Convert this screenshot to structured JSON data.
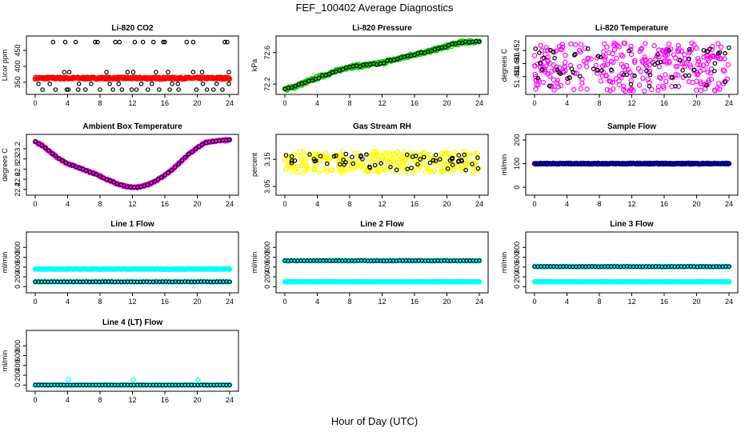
{
  "page": {
    "title": "FEF_100402  Average Diagnostics",
    "xlabel": "Hour of Day (UTC)"
  },
  "colors": {
    "black": "#000000",
    "red": "#ff0000",
    "green": "#00cc00",
    "magenta": "#ff00ff",
    "yellow": "#ffff00",
    "blue": "#0000ff",
    "cyan": "#00ffff"
  },
  "chart_data": [
    {
      "id": "co2",
      "type": "scatter",
      "title": "Li-820 CO2",
      "ylabel": "Licor ppm",
      "xlim": [
        0,
        24
      ],
      "ylim": [
        322,
        485
      ],
      "xticks": [
        0,
        4,
        8,
        12,
        16,
        20,
        24
      ],
      "yticks": [
        350,
        400,
        450
      ],
      "series": [
        {
          "name": "points",
          "color": "#ff0000",
          "mode": "band",
          "x0": 0,
          "x1": 24,
          "y": 363,
          "spread": 3
        },
        {
          "name": "averages",
          "color": "#000000",
          "mode": "list",
          "x": [
            2.2,
            3.7,
            5.0,
            7.4,
            7.7,
            9.9,
            10.4,
            12.3,
            13.3,
            14.6,
            15.8,
            16.0,
            18.7,
            19.5,
            23.4,
            23.7,
            0.9,
            2.5,
            3.9,
            4.1,
            5.3,
            6.2,
            8.0,
            9.6,
            10.7,
            11.9,
            12.5,
            13.9,
            15.3,
            16.6,
            17.7,
            19.9,
            21.2,
            22.0,
            23.1,
            3.6,
            4.2,
            8.8,
            11.4,
            12.1,
            14.9,
            16.4,
            19.5,
            20.6,
            23.9,
            0.4,
            1.8,
            5.4,
            6.9,
            9.2,
            10.3,
            13.1,
            14.4,
            16.9,
            17.6,
            20.7,
            22.4,
            23.9
          ],
          "y": [
            476,
            476,
            476,
            476,
            476,
            476,
            476,
            476,
            476,
            476,
            476,
            476,
            476,
            476,
            476,
            476,
            327,
            327,
            327,
            327,
            327,
            327,
            327,
            327,
            327,
            327,
            327,
            327,
            327,
            327,
            327,
            327,
            327,
            327,
            327,
            382,
            382,
            382,
            382,
            382,
            382,
            382,
            382,
            382,
            382,
            345,
            345,
            345,
            345,
            345,
            345,
            345,
            345,
            345,
            345,
            345,
            345,
            345
          ]
        }
      ]
    },
    {
      "id": "pressure",
      "type": "scatter",
      "title": "Li-820 Pressure",
      "ylabel": "kPa",
      "xlim": [
        0,
        24
      ],
      "ylim": [
        72.11,
        72.77
      ],
      "xticks": [
        0,
        4,
        8,
        12,
        16,
        20,
        24
      ],
      "yticks": [
        72.2,
        72.6
      ],
      "series": [
        {
          "name": "points",
          "color": "#00cc00",
          "mode": "curve",
          "cx": [
            0,
            1,
            2,
            3,
            4,
            5,
            6,
            7,
            8,
            9,
            10,
            11,
            12,
            13,
            14,
            15,
            16,
            17,
            18,
            19,
            20,
            21,
            22,
            23,
            24
          ],
          "cy": [
            72.13,
            72.16,
            72.2,
            72.24,
            72.28,
            72.32,
            72.35,
            72.39,
            72.42,
            72.43,
            72.44,
            72.45,
            72.47,
            72.5,
            72.52,
            72.55,
            72.58,
            72.6,
            72.62,
            72.65,
            72.68,
            72.71,
            72.73,
            72.74,
            72.74
          ],
          "spread": 0.02
        },
        {
          "name": "averages",
          "color": "#000000",
          "mode": "curve-sparse",
          "cx": [
            0,
            1,
            2,
            3,
            4,
            5,
            6,
            7,
            8,
            9,
            10,
            11,
            12,
            13,
            14,
            15,
            16,
            17,
            18,
            19,
            20,
            21,
            22,
            23,
            24
          ],
          "cy": [
            72.13,
            72.16,
            72.2,
            72.24,
            72.28,
            72.32,
            72.35,
            72.39,
            72.42,
            72.43,
            72.44,
            72.45,
            72.47,
            72.5,
            72.52,
            72.55,
            72.58,
            72.6,
            72.62,
            72.65,
            72.68,
            72.71,
            72.73,
            72.74,
            72.74
          ],
          "spread": 0.01
        }
      ]
    },
    {
      "id": "li820temp",
      "type": "scatter",
      "title": "Li-820 Temperature",
      "ylabel": "degrees C",
      "xlim": [
        0,
        24
      ],
      "ylim": [
        51.4395,
        51.4555
      ],
      "xticks": [
        0,
        4,
        8,
        12,
        16,
        20,
        24
      ],
      "yticks": [
        51.444,
        51.448,
        51.452
      ],
      "series": [
        {
          "name": "points",
          "color": "#ff00ff",
          "mode": "noise",
          "x0": 0,
          "x1": 24,
          "y": 51.447,
          "spread": 0.0075
        },
        {
          "name": "averages",
          "color": "#000000",
          "mode": "noise-sparse",
          "x0": 0,
          "x1": 24,
          "y": 51.447,
          "spread": 0.006
        }
      ]
    },
    {
      "id": "boxtemp",
      "type": "scatter",
      "title": "Ambient Box Temperature",
      "ylabel": "degrees C",
      "xlim": [
        0,
        24
      ],
      "ylim": [
        22.35,
        23.42
      ],
      "xticks": [
        0,
        4,
        8,
        12,
        16,
        20,
        24
      ],
      "yticks": [
        22.4,
        22.6,
        22.8,
        23.0,
        23.2
      ],
      "series": [
        {
          "name": "points",
          "color": "#ff00ff",
          "mode": "curve",
          "cx": [
            0,
            1,
            2,
            3,
            4,
            5,
            6,
            7,
            8,
            9,
            10,
            11,
            12,
            13,
            14,
            15,
            16,
            17,
            18,
            19,
            20,
            21,
            22,
            23,
            24
          ],
          "cy": [
            23.34,
            23.25,
            23.12,
            23.0,
            22.91,
            22.85,
            22.79,
            22.73,
            22.66,
            22.59,
            22.52,
            22.47,
            22.44,
            22.45,
            22.5,
            22.58,
            22.68,
            22.8,
            22.95,
            23.1,
            23.22,
            23.32,
            23.35,
            23.36,
            23.37
          ],
          "spread": 0.015
        },
        {
          "name": "averages",
          "color": "#000000",
          "mode": "curve-sparse",
          "cx": [
            0,
            1,
            2,
            3,
            4,
            5,
            6,
            7,
            8,
            9,
            10,
            11,
            12,
            13,
            14,
            15,
            16,
            17,
            18,
            19,
            20,
            21,
            22,
            23,
            24
          ],
          "cy": [
            23.34,
            23.25,
            23.12,
            23.0,
            22.91,
            22.85,
            22.79,
            22.73,
            22.66,
            22.59,
            22.52,
            22.47,
            22.44,
            22.45,
            22.5,
            22.58,
            22.68,
            22.8,
            22.95,
            23.1,
            23.22,
            23.32,
            23.35,
            23.36,
            23.37
          ],
          "spread": 0.006
        }
      ]
    },
    {
      "id": "rh",
      "type": "scatter",
      "title": "Gas Stream RH",
      "ylabel": "percent",
      "xlim": [
        0,
        24
      ],
      "ylim": [
        3.03,
        3.23
      ],
      "xticks": [
        0,
        4,
        8,
        12,
        16,
        20,
        24
      ],
      "yticks": [
        3.05,
        3.15
      ],
      "series": [
        {
          "name": "points",
          "color": "#ffff00",
          "mode": "noise",
          "x0": 0,
          "x1": 24,
          "y": 3.14,
          "spread": 0.04
        },
        {
          "name": "averages",
          "color": "#000000",
          "mode": "noise-sparse",
          "x0": 0,
          "x1": 24,
          "y": 3.14,
          "spread": 0.03
        }
      ]
    },
    {
      "id": "sampleflow",
      "type": "scatter",
      "title": "Sample Flow",
      "ylabel": "ml/min",
      "xlim": [
        0,
        24
      ],
      "ylim": [
        -20,
        210
      ],
      "xticks": [
        0,
        4,
        8,
        12,
        16,
        20,
        24
      ],
      "yticks": [
        0,
        100,
        200
      ],
      "series": [
        {
          "name": "points",
          "color": "#0000ff",
          "mode": "band",
          "x0": 0,
          "x1": 24,
          "y": 100,
          "spread": 2
        },
        {
          "name": "averages",
          "color": "#000000",
          "mode": "band-sparse",
          "x0": 0,
          "x1": 24,
          "y": 100,
          "spread": 1
        }
      ]
    },
    {
      "id": "line1",
      "type": "scatter",
      "title": "Line 1 Flow",
      "ylabel": "ml/min",
      "xlim": [
        0,
        24
      ],
      "ylim": [
        -60,
        1050
      ],
      "xticks": [
        0,
        4,
        8,
        12,
        16,
        20,
        24
      ],
      "yticks": [
        0,
        200,
        400,
        600,
        800
      ],
      "series": [
        {
          "name": "flow-a",
          "color": "#00ffff",
          "mode": "band",
          "x0": 0,
          "x1": 24,
          "y": 360,
          "spread": 6
        },
        {
          "name": "flow-b",
          "color": "#00ffff",
          "mode": "band",
          "x0": 0,
          "x1": 24,
          "y": 100,
          "spread": 4
        },
        {
          "name": "averages",
          "color": "#000000",
          "mode": "band-sparse",
          "x0": 0,
          "x1": 24,
          "y": 100,
          "spread": 3
        }
      ]
    },
    {
      "id": "line2",
      "type": "scatter",
      "title": "Line 2 Flow",
      "ylabel": "ml/min",
      "xlim": [
        0,
        24
      ],
      "ylim": [
        -60,
        1050
      ],
      "xticks": [
        0,
        4,
        8,
        12,
        16,
        20,
        24
      ],
      "yticks": [
        0,
        200,
        400,
        600,
        800
      ],
      "series": [
        {
          "name": "flow-a",
          "color": "#00ffff",
          "mode": "band",
          "x0": 0,
          "x1": 24,
          "y": 530,
          "spread": 6
        },
        {
          "name": "flow-b",
          "color": "#00ffff",
          "mode": "band",
          "x0": 0,
          "x1": 24,
          "y": 100,
          "spread": 4
        },
        {
          "name": "averages",
          "color": "#000000",
          "mode": "band-sparse",
          "x0": 0,
          "x1": 24,
          "y": 530,
          "spread": 3
        }
      ]
    },
    {
      "id": "line3",
      "type": "scatter",
      "title": "Line 3 Flow",
      "ylabel": "ml/min",
      "xlim": [
        0,
        24
      ],
      "ylim": [
        -60,
        1050
      ],
      "xticks": [
        0,
        4,
        8,
        12,
        16,
        20,
        24
      ],
      "yticks": [
        0,
        200,
        400,
        600,
        800
      ],
      "series": [
        {
          "name": "flow-a",
          "color": "#00ffff",
          "mode": "band",
          "x0": 0,
          "x1": 24,
          "y": 410,
          "spread": 6
        },
        {
          "name": "flow-b",
          "color": "#00ffff",
          "mode": "band",
          "x0": 0,
          "x1": 24,
          "y": 100,
          "spread": 4
        },
        {
          "name": "averages",
          "color": "#000000",
          "mode": "band-sparse",
          "x0": 0,
          "x1": 24,
          "y": 410,
          "spread": 3
        }
      ]
    },
    {
      "id": "line4",
      "type": "scatter",
      "title": "Line 4 (LT) Flow",
      "ylabel": "ml/min",
      "xlim": [
        0,
        24
      ],
      "ylim": [
        -60,
        1050
      ],
      "xticks": [
        0,
        4,
        8,
        12,
        16,
        20,
        24
      ],
      "yticks": [
        0,
        200,
        400,
        600,
        800
      ],
      "series": [
        {
          "name": "flow-a",
          "color": "#00ffff",
          "mode": "band",
          "x0": 0,
          "x1": 24,
          "y": 0,
          "spread": 4
        },
        {
          "name": "spikes",
          "color": "#00ffff",
          "mode": "list",
          "x": [
            4.1,
            12.1,
            20.1
          ],
          "y": [
            110,
            110,
            110
          ]
        },
        {
          "name": "averages",
          "color": "#000000",
          "mode": "band-sparse",
          "x0": 0,
          "x1": 24,
          "y": 0,
          "spread": 2
        }
      ]
    }
  ]
}
